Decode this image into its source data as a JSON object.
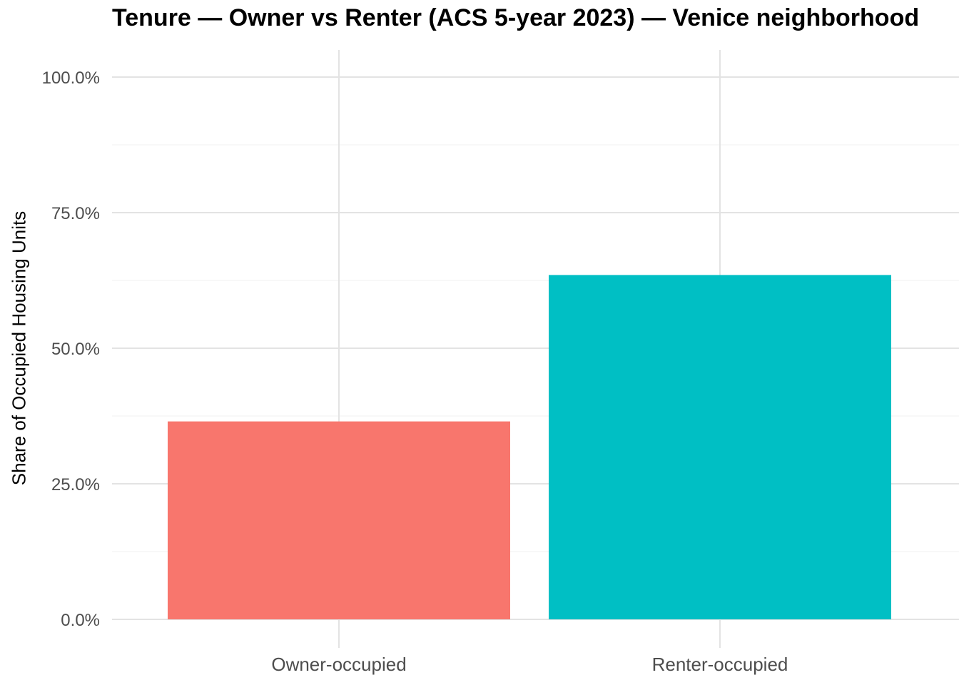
{
  "chart_data": {
    "type": "bar",
    "title": "Tenure — Owner vs Renter (ACS 5-year 2023) — Venice neighborhood",
    "xlabel": "",
    "ylabel": "Share of Occupied Housing Units",
    "categories": [
      "Owner-occupied",
      "Renter-occupied"
    ],
    "values": [
      36.5,
      63.5
    ],
    "colors": [
      "#F8766D",
      "#00BFC4"
    ],
    "ylim": [
      0,
      100
    ],
    "yticks": [
      0,
      25,
      50,
      75,
      100
    ],
    "ytick_labels": [
      "0.0%",
      "25.0%",
      "50.0%",
      "75.0%",
      "100.0%"
    ],
    "grid": true,
    "legend": "none"
  }
}
